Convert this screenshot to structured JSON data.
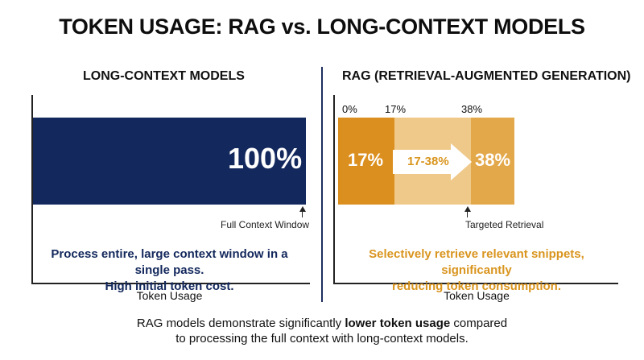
{
  "title": "TOKEN USAGE: RAG vs. LONG-CONTEXT MODELS",
  "left_panel": {
    "title": "LONG-CONTEXT MODELS",
    "bar_label": "100%",
    "marker_label": "Full Context Window",
    "description_line1": "Process entire, large context window in a single pass.",
    "description_line2": "High initial token cost.",
    "x_axis_title": "Token Usage"
  },
  "right_panel": {
    "title": "RAG (RETRIEVAL-AUGMENTED GENERATION)",
    "ticks": [
      "0%",
      "17%",
      "38%"
    ],
    "segment1_label": "17%",
    "segment2_label": "17-38%",
    "segment3_label": "38%",
    "marker_label": "Targeted Retrieval",
    "description_line1": "Selectively retrieve relevant snippets, significantly",
    "description_line2": "reducing token consumption.",
    "x_axis_title": "Token Usage"
  },
  "footer": {
    "pre": "RAG models demonstrate significantly ",
    "bold": "lower token usage",
    "post": " compared",
    "line2": "to processing the full context with long-context models."
  },
  "colors": {
    "navy": "#13285c",
    "orange_dark": "#db8f1e",
    "orange_light": "#efc98a",
    "orange_mid": "#e3a84a",
    "orange_text": "#d9951f"
  },
  "chart_data": [
    {
      "type": "bar",
      "title": "LONG-CONTEXT MODELS",
      "xlabel": "Token Usage",
      "categories": [
        "Full Context Window"
      ],
      "values": [
        100
      ],
      "unit": "%"
    },
    {
      "type": "bar",
      "title": "RAG (RETRIEVAL-AUGMENTED GENERATION)",
      "xlabel": "Token Usage",
      "segments": [
        {
          "label": "17%",
          "start": 0,
          "end": 17
        },
        {
          "label": "17-38%",
          "start": 17,
          "end": 38
        },
        {
          "label": "38%",
          "start": 38,
          "end": 38
        }
      ],
      "ticks": [
        0,
        17,
        38
      ],
      "unit": "%"
    }
  ]
}
